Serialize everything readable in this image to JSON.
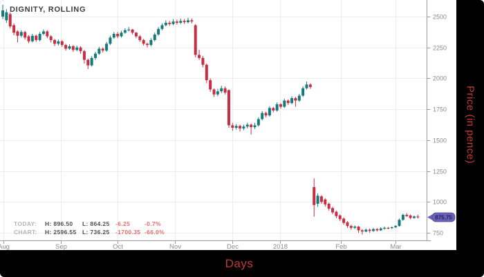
{
  "header": {
    "title": "DIGNITY, ROLLING"
  },
  "axes": {
    "x_label": "Days",
    "y_label": "Price (in pence)"
  },
  "price_tag": {
    "value": "875.75"
  },
  "stats": {
    "rows": [
      {
        "name": "TODAY:",
        "high": "H: 896.50",
        "low": "L: 864.25",
        "change": "-6.25",
        "change_pct": "-0.7%"
      },
      {
        "name": "CHART:",
        "high": "H: 2596.55",
        "low": "L: 736.25",
        "change": "-1700.35",
        "change_pct": "-66.0%"
      }
    ]
  },
  "colors": {
    "up": "#16797c",
    "down": "#c92d42",
    "grid": "#ededed",
    "axis": "#9a9a9a",
    "tick_text": "#8a8a8a",
    "title_text": "#3d3d3d",
    "accent_red": "#c33a35",
    "stats_red": "#e36b6b",
    "tag_bg": "#6b62b5",
    "tag_border": "#55499e",
    "tag_text": "#23206b",
    "frame_bg": "#000000"
  },
  "chart_data": {
    "type": "candlestick",
    "title": "DIGNITY, ROLLING",
    "xlabel": "Days",
    "ylabel": "Price (in pence)",
    "ylim": [
      688,
      2634
    ],
    "yticks": [
      750,
      1000,
      1250,
      1500,
      1750,
      2000,
      2250,
      2500
    ],
    "xticks": [
      {
        "label": "Aug",
        "i": 0.2
      },
      {
        "label": "Sep",
        "i": 15.7
      },
      {
        "label": "Oct",
        "i": 31.0
      },
      {
        "label": "Nov",
        "i": 46.5
      },
      {
        "label": "Dec",
        "i": 62.0
      },
      {
        "label": "2018",
        "i": 74.9
      },
      {
        "label": "Feb",
        "i": 91.3
      },
      {
        "label": "Mar",
        "i": 106.0
      }
    ],
    "grid": true,
    "last_price": 875.75,
    "today": {
      "high": 896.5,
      "low": 864.25,
      "change": -6.25,
      "change_pct": -0.7
    },
    "chart_range": {
      "high": 2596.55,
      "low": 736.25,
      "change": -1700.35,
      "change_pct": -66.0
    },
    "ohlc": [
      [
        2500,
        2596,
        2480,
        2550
      ],
      [
        2470,
        2560,
        2450,
        2535
      ],
      [
        2520,
        2535,
        2405,
        2420
      ],
      [
        2430,
        2445,
        2350,
        2370
      ],
      [
        2380,
        2390,
        2290,
        2345
      ],
      [
        2345,
        2390,
        2330,
        2375
      ],
      [
        2375,
        2385,
        2315,
        2330
      ],
      [
        2340,
        2350,
        2285,
        2300
      ],
      [
        2300,
        2360,
        2290,
        2345
      ],
      [
        2345,
        2355,
        2295,
        2310
      ],
      [
        2310,
        2375,
        2300,
        2360
      ],
      [
        2360,
        2395,
        2350,
        2380
      ],
      [
        2380,
        2390,
        2325,
        2340
      ],
      [
        2340,
        2350,
        2290,
        2310
      ],
      [
        2310,
        2320,
        2260,
        2280
      ],
      [
        2280,
        2315,
        2265,
        2300
      ],
      [
        2300,
        2310,
        2255,
        2270
      ],
      [
        2270,
        2280,
        2225,
        2240
      ],
      [
        2240,
        2275,
        2230,
        2260
      ],
      [
        2260,
        2270,
        2215,
        2230
      ],
      [
        2230,
        2265,
        2220,
        2250
      ],
      [
        2250,
        2260,
        2200,
        2220
      ],
      [
        2220,
        2230,
        2120,
        2150
      ],
      [
        2150,
        2160,
        2075,
        2105
      ],
      [
        2105,
        2180,
        2095,
        2165
      ],
      [
        2165,
        2215,
        2150,
        2200
      ],
      [
        2200,
        2255,
        2190,
        2240
      ],
      [
        2240,
        2250,
        2210,
        2225
      ],
      [
        2225,
        2295,
        2215,
        2280
      ],
      [
        2280,
        2345,
        2270,
        2330
      ],
      [
        2330,
        2375,
        2320,
        2360
      ],
      [
        2360,
        2375,
        2325,
        2340
      ],
      [
        2340,
        2385,
        2330,
        2370
      ],
      [
        2370,
        2405,
        2360,
        2390
      ],
      [
        2390,
        2415,
        2380,
        2395
      ],
      [
        2395,
        2400,
        2355,
        2370
      ],
      [
        2370,
        2375,
        2325,
        2340
      ],
      [
        2340,
        2350,
        2295,
        2310
      ],
      [
        2310,
        2320,
        2265,
        2280
      ],
      [
        2280,
        2290,
        2250,
        2270
      ],
      [
        2270,
        2325,
        2260,
        2310
      ],
      [
        2310,
        2370,
        2300,
        2355
      ],
      [
        2355,
        2415,
        2345,
        2400
      ],
      [
        2400,
        2445,
        2390,
        2430
      ],
      [
        2430,
        2470,
        2420,
        2450
      ],
      [
        2450,
        2465,
        2425,
        2440
      ],
      [
        2440,
        2480,
        2430,
        2460
      ],
      [
        2460,
        2475,
        2435,
        2450
      ],
      [
        2450,
        2485,
        2440,
        2465
      ],
      [
        2465,
        2480,
        2440,
        2455
      ],
      [
        2455,
        2490,
        2445,
        2470
      ],
      [
        2470,
        2485,
        2445,
        2460
      ],
      [
        2430,
        2440,
        2170,
        2190
      ],
      [
        2190,
        2230,
        2150,
        2165
      ],
      [
        2165,
        2180,
        2090,
        2110
      ],
      [
        2110,
        2120,
        1960,
        1985
      ],
      [
        1985,
        2000,
        1890,
        1910
      ],
      [
        1910,
        1920,
        1850,
        1870
      ],
      [
        1870,
        1915,
        1855,
        1895
      ],
      [
        1895,
        1940,
        1880,
        1920
      ],
      [
        1920,
        1935,
        1870,
        1885
      ],
      [
        1905,
        1910,
        1600,
        1620
      ],
      [
        1620,
        1640,
        1575,
        1600
      ],
      [
        1600,
        1630,
        1585,
        1615
      ],
      [
        1615,
        1625,
        1570,
        1595
      ],
      [
        1595,
        1625,
        1580,
        1610
      ],
      [
        1610,
        1640,
        1595,
        1625
      ],
      [
        1625,
        1635,
        1545,
        1605
      ],
      [
        1605,
        1640,
        1590,
        1620
      ],
      [
        1620,
        1685,
        1610,
        1670
      ],
      [
        1670,
        1735,
        1660,
        1720
      ],
      [
        1720,
        1730,
        1685,
        1700
      ],
      [
        1700,
        1775,
        1690,
        1760
      ],
      [
        1760,
        1770,
        1725,
        1740
      ],
      [
        1740,
        1805,
        1730,
        1790
      ],
      [
        1790,
        1800,
        1755,
        1770
      ],
      [
        1770,
        1835,
        1760,
        1820
      ],
      [
        1820,
        1830,
        1785,
        1800
      ],
      [
        1800,
        1855,
        1790,
        1840
      ],
      [
        1840,
        1850,
        1770,
        1820
      ],
      [
        1820,
        1875,
        1810,
        1860
      ],
      [
        1860,
        1935,
        1850,
        1920
      ],
      [
        1920,
        1975,
        1910,
        1950
      ],
      [
        1950,
        1960,
        1915,
        1930
      ],
      [
        1120,
        1190,
        880,
        975
      ],
      [
        985,
        1070,
        960,
        1050
      ],
      [
        1045,
        1055,
        985,
        1000
      ],
      [
        1020,
        1030,
        962,
        980
      ],
      [
        985,
        995,
        930,
        945
      ],
      [
        950,
        960,
        900,
        915
      ],
      [
        920,
        930,
        868,
        885
      ],
      [
        890,
        900,
        845,
        860
      ],
      [
        865,
        875,
        815,
        830
      ],
      [
        835,
        845,
        790,
        805
      ],
      [
        805,
        815,
        775,
        790
      ],
      [
        790,
        810,
        780,
        800
      ],
      [
        800,
        805,
        750,
        770
      ],
      [
        770,
        780,
        736,
        760
      ],
      [
        760,
        785,
        755,
        775
      ],
      [
        775,
        785,
        750,
        765
      ],
      [
        765,
        790,
        758,
        780
      ],
      [
        780,
        788,
        760,
        770
      ],
      [
        770,
        795,
        765,
        785
      ],
      [
        785,
        800,
        775,
        790
      ],
      [
        790,
        798,
        780,
        788
      ],
      [
        788,
        802,
        782,
        795
      ],
      [
        795,
        812,
        788,
        805
      ],
      [
        805,
        865,
        800,
        855
      ],
      [
        855,
        905,
        848,
        895
      ],
      [
        895,
        910,
        878,
        885
      ],
      [
        890,
        898,
        860,
        870
      ],
      [
        870,
        890,
        864,
        882
      ],
      [
        882,
        896.5,
        864.25,
        875.75
      ]
    ]
  }
}
